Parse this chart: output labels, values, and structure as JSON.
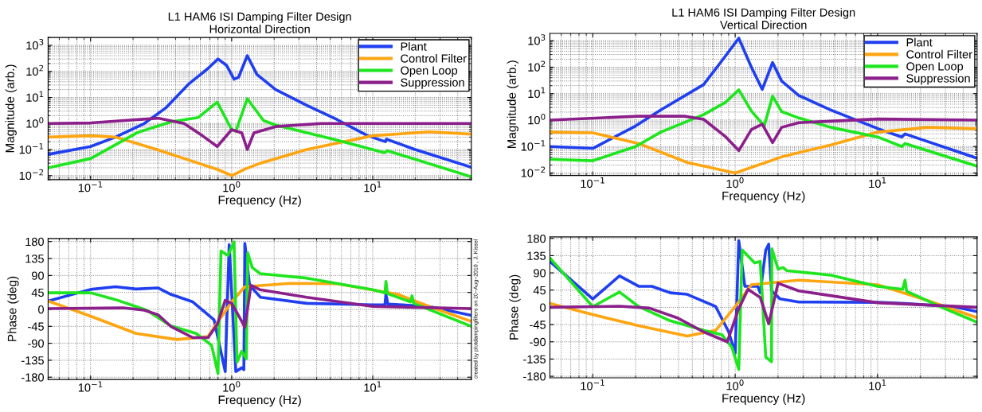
{
  "chart_data": [
    {
      "type": "line",
      "title": "L1 HAM6 ISI Damping Filter Design",
      "subtitle": "Horizontal Direction",
      "xlabel": "Frequency (Hz)",
      "ylabel": "Magnitude (arb.)",
      "log": "xy",
      "grid": true,
      "legend": "top right",
      "xlim": [
        0.05,
        50
      ],
      "xticks": [
        {
          "value": 0.1,
          "label": "10$^{−1}$"
        },
        {
          "value": 1,
          "label": "10$^{0}$"
        },
        {
          "value": 10,
          "label": "10$^{1}$"
        }
      ],
      "ylim": [
        0.007,
        2000
      ],
      "yticks": [
        {
          "value": 0.01,
          "label": "10$^{−2}$"
        },
        {
          "value": 0.1,
          "label": "10$^{−1}$"
        },
        {
          "value": 1,
          "label": "10$^{0}$"
        },
        {
          "value": 10,
          "label": "10$^{1}$"
        },
        {
          "value": 100,
          "label": "10$^{2}$"
        },
        {
          "value": 1000,
          "label": "10$^{3}$"
        }
      ],
      "series": [
        {
          "name": "Plant",
          "color": "#1f3ff0",
          "x": [
            0.05,
            0.1,
            0.15,
            0.24,
            0.34,
            0.5,
            0.68,
            0.8,
            0.92,
            1.04,
            1.12,
            1.29,
            1.51,
            2.05,
            3.4,
            5.6,
            9.2,
            12.3,
            12.5,
            20,
            50
          ],
          "values": [
            0.065,
            0.13,
            0.3,
            1,
            3.9,
            34,
            130,
            300,
            170,
            50,
            60,
            400,
            76,
            20,
            5,
            1.4,
            0.34,
            0.2,
            0.25,
            0.1,
            0.021
          ]
        },
        {
          "name": "Control Filter",
          "color": "#ffa510",
          "x": [
            0.05,
            0.1,
            0.15,
            0.28,
            0.58,
            0.8,
            1.0,
            1.25,
            1.6,
            3.4,
            10,
            25,
            50
          ],
          "values": [
            0.3,
            0.34,
            0.3,
            0.11,
            0.03,
            0.017,
            0.01,
            0.018,
            0.03,
            0.1,
            0.34,
            0.48,
            0.39
          ]
        },
        {
          "name": "Open Loop",
          "color": "#1ee61e",
          "x": [
            0.05,
            0.1,
            0.215,
            0.37,
            0.58,
            0.79,
            1.0,
            1.07,
            1.29,
            1.68,
            2.05,
            5.6,
            12.1,
            12.7,
            50
          ],
          "values": [
            0.02,
            0.045,
            0.45,
            1.15,
            1.7,
            6.6,
            0.58,
            0.5,
            9,
            1.3,
            0.87,
            0.23,
            0.076,
            0.09,
            0.009
          ]
        },
        {
          "name": "Suppression",
          "color": "#8b1f8b",
          "x": [
            0.05,
            0.1,
            0.3,
            0.46,
            0.62,
            0.79,
            1.0,
            1.18,
            1.29,
            1.44,
            2.05,
            4.3,
            50
          ],
          "values": [
            1.0,
            1.05,
            1.6,
            1.0,
            0.34,
            0.13,
            0.58,
            0.44,
            0.1,
            0.44,
            0.76,
            1.0,
            1.0
          ]
        }
      ]
    },
    {
      "type": "line",
      "title": "L1 HAM6 ISI Damping Filter Design",
      "subtitle": "Vertical Direction",
      "xlabel": "Frequency (Hz)",
      "ylabel": "Magnitude (arb.)",
      "log": "xy",
      "grid": true,
      "legend": "top right",
      "xlim": [
        0.05,
        50
      ],
      "xticks": [
        {
          "value": 0.1,
          "label": "10$^{−1}$"
        },
        {
          "value": 1,
          "label": "10$^{0}$"
        },
        {
          "value": 10,
          "label": "10$^{1}$"
        }
      ],
      "ylim": [
        0.008,
        1900
      ],
      "yticks": [
        {
          "value": 0.01,
          "label": "10$^{−2}$"
        },
        {
          "value": 0.1,
          "label": "10$^{−1}$"
        },
        {
          "value": 1,
          "label": "10$^{0}$"
        },
        {
          "value": 10,
          "label": "10$^{1}$"
        },
        {
          "value": 100,
          "label": "10$^{2}$"
        },
        {
          "value": 1000,
          "label": "10$^{3}$"
        }
      ],
      "series": [
        {
          "name": "Plant",
          "color": "#1f3ff0",
          "x": [
            0.05,
            0.1,
            0.2,
            0.3,
            0.6,
            0.81,
            1.06,
            1.3,
            1.55,
            1.83,
            2.12,
            2.8,
            4.7,
            10.2,
            14.8,
            15.6,
            50
          ],
          "values": [
            0.1,
            0.085,
            0.6,
            2.4,
            22,
            180,
            1250,
            100,
            14.5,
            150,
            30,
            8.5,
            2.4,
            0.46,
            0.23,
            0.3,
            0.036
          ]
        },
        {
          "name": "Control Filter",
          "color": "#ffa510",
          "x": [
            0.05,
            0.1,
            0.21,
            0.46,
            1.0,
            2.2,
            4.7,
            10,
            22.4,
            50
          ],
          "values": [
            0.35,
            0.33,
            0.13,
            0.025,
            0.01,
            0.043,
            0.115,
            0.35,
            0.53,
            0.47
          ]
        },
        {
          "name": "Open Loop",
          "color": "#1ee61e",
          "x": [
            0.05,
            0.1,
            0.2,
            0.3,
            0.6,
            0.86,
            1.06,
            1.3,
            1.5,
            1.6,
            1.83,
            2.12,
            2.8,
            4.7,
            10,
            14.8,
            15.6,
            50
          ],
          "values": [
            0.033,
            0.029,
            0.1,
            0.35,
            1.6,
            4.8,
            14,
            2.2,
            0.9,
            0.6,
            8,
            2.1,
            1.2,
            0.53,
            0.23,
            0.1,
            0.13,
            0.018
          ]
        },
        {
          "name": "Suppression",
          "color": "#8b1f8b",
          "x": [
            0.05,
            0.21,
            0.44,
            0.6,
            0.86,
            1.06,
            1.3,
            1.55,
            1.83,
            2.12,
            2.8,
            10,
            50
          ],
          "values": [
            1.0,
            1.4,
            1.4,
            1.07,
            0.23,
            0.07,
            0.44,
            0.7,
            0.14,
            0.53,
            0.8,
            1.1,
            1.0
          ]
        }
      ]
    },
    {
      "type": "line",
      "xlabel": "Frequency (Hz)",
      "ylabel": "Phase (deg)",
      "log": "x",
      "grid": true,
      "annotations": [
        "created by plotdampingfilters on 20−Aug−2010 , J. Kissel"
      ],
      "xlim": [
        0.05,
        50
      ],
      "xticks": [
        {
          "value": 0.1,
          "label": "10$^{−1}$"
        },
        {
          "value": 1,
          "label": "10$^{0}$"
        },
        {
          "value": 10,
          "label": "10$^{1}$"
        }
      ],
      "ylim": [
        -186,
        188
      ],
      "yticks": [
        -180,
        -135,
        -90,
        -45,
        0,
        45,
        90,
        135,
        180
      ],
      "series": [
        {
          "color": "#1f3ff0",
          "x": [
            0.05,
            0.1,
            0.15,
            0.21,
            0.3,
            0.37,
            0.53,
            0.75,
            0.9,
            0.96,
            1.07,
            1.18,
            1.22,
            1.24,
            1.34,
            1.6,
            3.4,
            10,
            12.2,
            12.4,
            12.8,
            25,
            50
          ],
          "values": [
            22,
            53,
            60,
            54,
            57,
            40,
            20,
            -28,
            -165,
            172,
            -165,
            -155,
            -160,
            175,
            64,
            32,
            16,
            12,
            12,
            40,
            14,
            8,
            -16
          ]
        },
        {
          "color": "#ffa510",
          "x": [
            0.05,
            0.1,
            0.21,
            0.41,
            0.68,
            1.0,
            1.24,
            2.6,
            5.6,
            15,
            25,
            50
          ],
          "values": [
            22,
            -18,
            -64,
            -80,
            -72,
            20,
            60,
            69,
            68,
            40,
            8,
            -32
          ]
        },
        {
          "color": "#1ee61e",
          "x": [
            0.05,
            0.1,
            0.15,
            0.25,
            0.37,
            0.56,
            0.72,
            0.8,
            0.84,
            0.94,
            1.04,
            1.09,
            1.18,
            1.27,
            1.3,
            1.4,
            1.59,
            3.4,
            10,
            12.2,
            12.4,
            12.7,
            18.5,
            19,
            19.5,
            50
          ],
          "values": [
            44,
            44,
            26,
            -2,
            -44,
            -64,
            -95,
            -170,
            155,
            143,
            179,
            -140,
            -111,
            -131,
            150,
            111,
            95,
            83,
            52,
            44,
            74,
            42,
            20,
            36,
            16,
            -45
          ]
        },
        {
          "color": "#8b1f8b",
          "x": [
            0.05,
            0.17,
            0.24,
            0.3,
            0.37,
            0.53,
            0.68,
            0.79,
            0.9,
            1.0,
            1.18,
            1.24,
            1.37,
            1.59,
            3.4,
            10,
            50
          ],
          "values": [
            2,
            4,
            -2,
            -14,
            -45,
            -75,
            -75,
            -40,
            24,
            16,
            -32,
            -48,
            64,
            52,
            32,
            8,
            2
          ]
        }
      ]
    },
    {
      "type": "line",
      "xlabel": "Frequency (Hz)",
      "ylabel": "Phase (deg)",
      "log": "x",
      "grid": true,
      "xlim": [
        0.05,
        50
      ],
      "xticks": [
        {
          "value": 0.1,
          "label": "10$^{−1}$"
        },
        {
          "value": 1,
          "label": "10$^{0}$"
        },
        {
          "value": 10,
          "label": "10$^{1}$"
        }
      ],
      "ylim": [
        -184,
        184
      ],
      "yticks": [
        -180,
        -135,
        -90,
        -45,
        0,
        45,
        90,
        135,
        180
      ],
      "series": [
        {
          "color": "#1f3ff0",
          "x": [
            0.05,
            0.1,
            0.154,
            0.21,
            0.26,
            0.35,
            0.46,
            0.73,
            0.9,
            1.0,
            1.06,
            1.17,
            1.44,
            1.5,
            1.64,
            1.72,
            1.8,
            2.07,
            2.8,
            10,
            15.6,
            34,
            50
          ],
          "values": [
            120,
            22,
            82,
            55,
            55,
            38,
            34,
            2,
            -64,
            -120,
            174,
            55,
            55,
            38,
            150,
            165,
            43,
            22,
            14,
            13,
            10,
            2,
            -11
          ]
        },
        {
          "color": "#ffa510",
          "x": [
            0.05,
            0.1,
            0.21,
            0.46,
            0.73,
            1.0,
            1.3,
            2.8,
            10,
            22.4,
            50
          ],
          "values": [
            10,
            -19,
            -48,
            -75,
            -60,
            2,
            59,
            71,
            59,
            18,
            -27
          ]
        },
        {
          "color": "#1ee61e",
          "x": [
            0.05,
            0.1,
            0.154,
            0.21,
            0.35,
            0.6,
            0.81,
            0.95,
            1.06,
            1.12,
            1.37,
            1.5,
            1.64,
            1.8,
            1.81,
            2.0,
            2.17,
            2.3,
            4.7,
            10,
            15,
            15.6,
            16,
            29,
            50
          ],
          "values": [
            129,
            2,
            40,
            2,
            -35,
            -60,
            -72,
            -105,
            -162,
            150,
            116,
            120,
            -130,
            -142,
            153,
            100,
            104,
            96,
            84,
            55,
            47,
            71,
            42,
            -2,
            -39
          ]
        },
        {
          "color": "#8b1f8b",
          "x": [
            0.05,
            0.154,
            0.25,
            0.39,
            0.6,
            0.88,
            1.05,
            1.23,
            1.5,
            1.72,
            2.0,
            2.8,
            10,
            50
          ],
          "values": [
            0,
            3,
            -2,
            -27,
            -64,
            -90,
            -7,
            47,
            26,
            -43,
            63,
            43,
            12,
            0
          ]
        }
      ]
    }
  ]
}
